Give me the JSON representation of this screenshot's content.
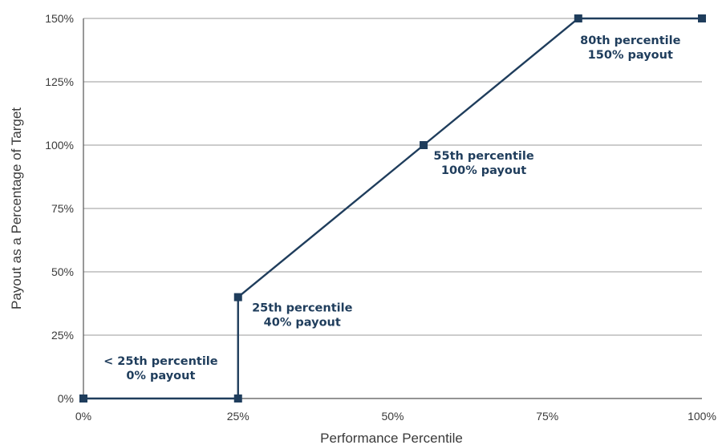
{
  "chart_data": {
    "type": "line",
    "title": "",
    "xlabel": "Performance Percentile",
    "ylabel": "Payout as a Percentage of Target",
    "xlim": [
      0,
      100
    ],
    "ylim": [
      0,
      150
    ],
    "x_ticks": [
      0,
      25,
      50,
      75,
      100
    ],
    "x_tick_labels": [
      "0%",
      "25%",
      "50%",
      "75%",
      "100%"
    ],
    "y_ticks": [
      0,
      25,
      50,
      75,
      100,
      125,
      150
    ],
    "y_tick_labels": [
      "0%",
      "25%",
      "50%",
      "75%",
      "100%",
      "125%",
      "150%"
    ],
    "grid": "horizontal",
    "series": [
      {
        "points": [
          {
            "x": 0,
            "y": 0
          },
          {
            "x": 25,
            "y": 0
          },
          {
            "x": 25,
            "y": 40
          },
          {
            "x": 55,
            "y": 100
          },
          {
            "x": 80,
            "y": 150
          },
          {
            "x": 100,
            "y": 150
          }
        ]
      }
    ],
    "annotations": [
      {
        "line1": "< 25th percentile",
        "line2": "0% payout",
        "x": 12.5,
        "y": 0
      },
      {
        "line1": "25th percentile",
        "line2": "40% payout",
        "x": 25,
        "y": 40
      },
      {
        "line1": "55th percentile",
        "line2": "100% payout",
        "x": 55,
        "y": 100
      },
      {
        "line1": "80th percentile",
        "line2": "150% payout",
        "x": 80,
        "y": 150
      }
    ],
    "colors": {
      "line": "#1f3d5c",
      "annotation": "#1f3d5c"
    }
  }
}
